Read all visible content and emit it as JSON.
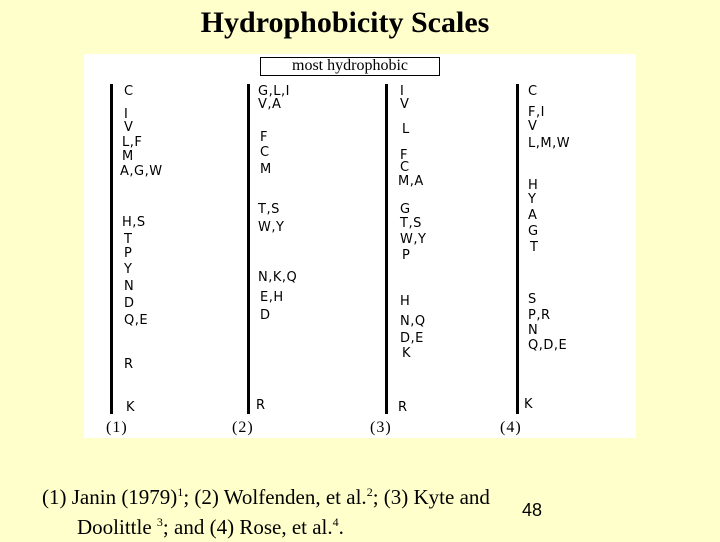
{
  "title": "Hydrophobicity Scales",
  "banner": "most hydrophobic",
  "scales": [
    {
      "number": "(1)",
      "labels": [
        "C",
        "I",
        "V",
        "L,F",
        "M",
        "A,G,W",
        "H,S",
        "T",
        "P",
        "Y",
        "N",
        "D",
        "Q,E",
        "R",
        "K"
      ]
    },
    {
      "number": "(2)",
      "labels": [
        "G,L,I",
        "V,A",
        "F",
        "C",
        "M",
        "T,S",
        "W,Y",
        "N,K,Q",
        "E,H",
        "D",
        "R"
      ]
    },
    {
      "number": "(3)",
      "labels": [
        "I",
        "V",
        "L",
        "F",
        "C",
        "M,A",
        "G",
        "T,S",
        "W,Y",
        "P",
        "H",
        "N,Q",
        "D,E",
        "K",
        "R"
      ]
    },
    {
      "number": "(4)",
      "labels": [
        "C",
        "F,I",
        "V",
        "L,M,W",
        "H",
        "Y",
        "A",
        "G",
        "T",
        "S",
        "P,R",
        "N",
        "Q,D,E",
        "K"
      ]
    }
  ],
  "caption": {
    "p1": "(1) Janin (1979)",
    "s1": "1",
    "p2": "; (2) Wolfenden, et al.",
    "s2": "2",
    "p3": "; (3) Kyte and",
    "p4": "Doolittle ",
    "s3": "3",
    "p5": "; and (4) Rose, et al.",
    "s4": "4",
    "p6": "."
  },
  "page_number": "48"
}
